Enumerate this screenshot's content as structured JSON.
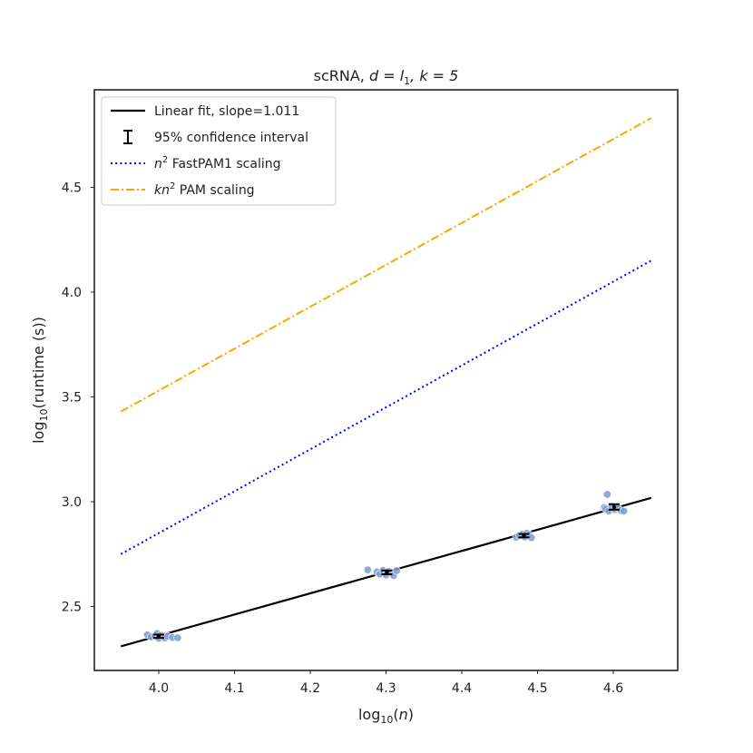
{
  "chart_data": {
    "type": "scatter",
    "title": {
      "base": "scRNA, ",
      "math": "d = l",
      "sub": "1",
      "tail": ", k = 5"
    },
    "xlabel": {
      "base": "log",
      "sub": "10",
      "tail": "(n)"
    },
    "ylabel": {
      "base": "log",
      "sub": "10",
      "tail": "(runtime (s))"
    },
    "xlim": [
      3.915,
      4.685
    ],
    "ylim": [
      2.195,
      4.965
    ],
    "xticks": [
      4.0,
      4.1,
      4.2,
      4.3,
      4.4,
      4.5,
      4.6
    ],
    "xtick_labels": [
      "4.0",
      "4.1",
      "4.2",
      "4.3",
      "4.4",
      "4.5",
      "4.6"
    ],
    "yticks": [
      2.5,
      3.0,
      3.5,
      4.0,
      4.5
    ],
    "ytick_labels": [
      "2.5",
      "3.0",
      "3.5",
      "4.0",
      "4.5"
    ],
    "grid": false,
    "legend_position": "upper-left",
    "colors": {
      "points": "#7f9ccb",
      "fit": "#000000",
      "n2": "#0000ff",
      "kn2": "#ffa500",
      "frame": "#222222"
    },
    "points": [
      [
        3.985,
        2.365
      ],
      [
        3.99,
        2.355
      ],
      [
        3.995,
        2.36
      ],
      [
        3.998,
        2.372
      ],
      [
        4.0,
        2.348
      ],
      [
        4.003,
        2.362
      ],
      [
        4.008,
        2.35
      ],
      [
        4.012,
        2.358
      ],
      [
        4.018,
        2.352
      ],
      [
        4.025,
        2.351
      ],
      [
        4.276,
        2.675
      ],
      [
        4.288,
        2.665
      ],
      [
        4.292,
        2.655
      ],
      [
        4.296,
        2.672
      ],
      [
        4.3,
        2.65
      ],
      [
        4.303,
        2.668
      ],
      [
        4.307,
        2.662
      ],
      [
        4.31,
        2.648
      ],
      [
        4.314,
        2.671
      ],
      [
        4.472,
        2.83
      ],
      [
        4.476,
        2.838
      ],
      [
        4.48,
        2.845
      ],
      [
        4.483,
        2.832
      ],
      [
        4.486,
        2.85
      ],
      [
        4.489,
        2.843
      ],
      [
        4.492,
        2.828
      ],
      [
        4.588,
        2.972
      ],
      [
        4.59,
        2.965
      ],
      [
        4.592,
        3.035
      ],
      [
        4.594,
        2.955
      ],
      [
        4.598,
        2.978
      ],
      [
        4.602,
        2.962
      ],
      [
        4.606,
        2.97
      ],
      [
        4.61,
        2.958
      ],
      [
        4.614,
        2.955
      ]
    ],
    "errorbars": [
      {
        "x": 4.0,
        "y": 2.358,
        "low": 2.35,
        "high": 2.366
      },
      {
        "x": 4.301,
        "y": 2.663,
        "low": 2.654,
        "high": 2.672
      },
      {
        "x": 4.482,
        "y": 2.838,
        "low": 2.83,
        "high": 2.846
      },
      {
        "x": 4.601,
        "y": 2.975,
        "low": 2.962,
        "high": 2.988
      }
    ],
    "series": [
      {
        "name": "Linear fit, slope=1.011",
        "style": "solid",
        "x": [
          3.95,
          4.65
        ],
        "y": [
          2.31,
          3.018
        ]
      },
      {
        "name": "n² FastPAM1 scaling",
        "style": "dotted",
        "x": [
          3.95,
          4.65
        ],
        "y": [
          2.75,
          4.15
        ]
      },
      {
        "name": "kn² PAM scaling",
        "style": "dashdot",
        "x": [
          3.95,
          4.65
        ],
        "y": [
          3.43,
          4.83
        ]
      }
    ],
    "legend": [
      {
        "key": "fit",
        "text": "Linear fit, slope=1.011"
      },
      {
        "key": "ci",
        "text": "95% confidence interval"
      },
      {
        "key": "n2",
        "sup_base": "n",
        "sup": "2",
        "text": " FastPAM1 scaling"
      },
      {
        "key": "kn2",
        "sup_base": "kn",
        "sup": "2",
        "text": " PAM scaling"
      }
    ]
  }
}
